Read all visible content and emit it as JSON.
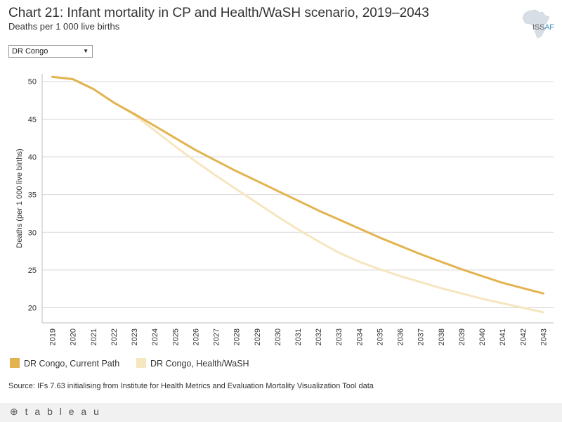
{
  "header": {
    "title": "Chart 21: Infant mortality in CP and Health/WaSH scenario, 2019–2043",
    "subtitle": "Deaths per 1 000 live births",
    "logo_text_a": "ISS",
    "logo_text_b": "AF"
  },
  "filter": {
    "selected": "DR Congo",
    "arrow": "▼"
  },
  "colors": {
    "current_path": "#e3b34f",
    "health_wash": "#f6e6c0",
    "grid": "#d9d9d9",
    "axis_text": "#333333"
  },
  "chart_data": {
    "type": "line",
    "title": "Chart 21: Infant mortality in CP and Health/WaSH scenario, 2019–2043",
    "xlabel": "",
    "ylabel": "Deaths (per 1 000 live births)",
    "ylim": [
      18,
      51
    ],
    "yticks": [
      20,
      25,
      30,
      35,
      40,
      45,
      50
    ],
    "x": [
      "2019",
      "2020",
      "2021",
      "2022",
      "2023",
      "2024",
      "2025",
      "2026",
      "2027",
      "2028",
      "2029",
      "2030",
      "2031",
      "2032",
      "2033",
      "2034",
      "2035",
      "2036",
      "2037",
      "2038",
      "2039",
      "2040",
      "2041",
      "2042",
      "2043"
    ],
    "series": [
      {
        "name": "DR Congo, Current Path",
        "color": "#e3b34f",
        "values": [
          50.6,
          50.3,
          49.0,
          47.2,
          45.7,
          44.1,
          42.5,
          40.9,
          39.5,
          38.1,
          36.8,
          35.5,
          34.2,
          32.9,
          31.7,
          30.5,
          29.3,
          28.2,
          27.1,
          26.1,
          25.1,
          24.2,
          23.3,
          22.6,
          21.9
        ]
      },
      {
        "name": "DR Congo, Health/WaSH",
        "color": "#f6e6c0",
        "values": [
          50.6,
          50.3,
          49.0,
          47.2,
          45.6,
          43.5,
          41.4,
          39.4,
          37.5,
          35.7,
          33.9,
          32.1,
          30.4,
          28.8,
          27.3,
          26.1,
          25.1,
          24.2,
          23.4,
          22.6,
          21.9,
          21.2,
          20.6,
          20.0,
          19.4
        ]
      }
    ]
  },
  "legend": {
    "items": [
      {
        "label": "DR Congo, Current Path"
      },
      {
        "label": "DR Congo, Health/WaSH"
      }
    ]
  },
  "source": "Source: IFs 7.63 initialising from Institute for Health Metrics and Evaluation Mortality Visualization Tool data",
  "footer": {
    "brand": "⊕ t a b l e a u"
  }
}
